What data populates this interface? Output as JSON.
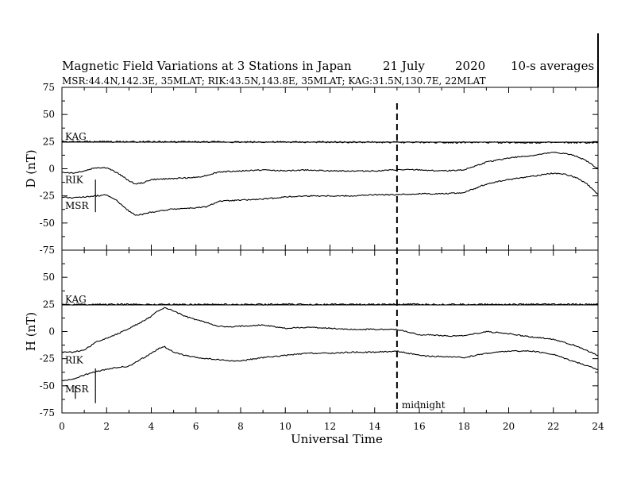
{
  "chart_data": {
    "type": "line",
    "title": "Magnetic Field Variations at 3 Stations in Japan",
    "date": "21 July",
    "year": "2020",
    "averaging": "10-s averages",
    "subtitle": "MSR:44.4N,142.3E, 35MLAT;  RIK:43.5N,143.8E, 35MLAT;  KAG:31.5N,130.7E, 22MLAT",
    "xlabel": "Universal Time",
    "xlim": [
      0,
      24
    ],
    "xticks": [
      "0",
      "2",
      "4",
      "6",
      "8",
      "10",
      "12",
      "14",
      "16",
      "18",
      "20",
      "22",
      "24"
    ],
    "annotation": {
      "label": "midnight",
      "x": 15
    },
    "panels": [
      {
        "ylabel": "D (nT)",
        "ylim": [
          -75,
          75
        ],
        "yticks": [
          "75",
          "50",
          "25",
          "0",
          "-25",
          "-50",
          "-75"
        ],
        "series": [
          {
            "name": "KAG",
            "baseline": 24.5,
            "x": [
              0,
              24
            ],
            "y": [
              25,
              24
            ]
          },
          {
            "name": "RIK",
            "x": [
              0,
              0.5,
              1,
              1.5,
              2,
              2.5,
              3,
              3.3,
              3.6,
              4,
              5,
              6,
              6.5,
              7,
              8,
              9,
              10,
              11,
              12,
              13,
              14,
              15,
              16,
              17,
              18,
              19,
              20,
              21,
              22,
              22.5,
              23,
              23.5,
              24
            ],
            "y": [
              -3,
              -4,
              -2,
              1,
              1,
              -4,
              -11,
              -14,
              -13,
              -10,
              -9,
              -8,
              -6,
              -3,
              -2,
              -1,
              -2,
              -1,
              -2,
              -2,
              -2,
              -1,
              -1,
              -2,
              -1,
              6,
              10,
              12,
              15,
              14,
              12,
              7,
              0
            ]
          },
          {
            "name": "MSR",
            "x": [
              0,
              0.5,
              1,
              1.5,
              2,
              2.5,
              3,
              3.3,
              3.6,
              4,
              5,
              6,
              6.5,
              7,
              8,
              9,
              10,
              11,
              12,
              13,
              14,
              15,
              16,
              17,
              18,
              19,
              20,
              21,
              22,
              22.5,
              23,
              23.5,
              24
            ],
            "y": [
              -26,
              -27,
              -26,
              -25,
              -24,
              -30,
              -39,
              -43,
              -42,
              -40,
              -37,
              -36,
              -35,
              -30,
              -29,
              -28,
              -26,
              -25,
              -25,
              -25,
              -24,
              -24,
              -23,
              -23,
              -22,
              -14,
              -10,
              -7,
              -4,
              -5,
              -8,
              -14,
              -24
            ]
          }
        ]
      },
      {
        "ylabel": "H (nT)",
        "ylim": [
          -75,
          75
        ],
        "yticks": [
          "75",
          "50",
          "25",
          "0",
          "-25",
          "-50",
          "-75"
        ],
        "series": [
          {
            "name": "KAG",
            "baseline": 24.5,
            "x": [
              0,
              24
            ],
            "y": [
              25,
              25
            ]
          },
          {
            "name": "RIK",
            "x": [
              0,
              0.5,
              1,
              1.5,
              2,
              2.5,
              3,
              3.5,
              4,
              4.3,
              4.6,
              5,
              5.5,
              6,
              6.5,
              7,
              7.5,
              8,
              9,
              10,
              11,
              12,
              13,
              14,
              15,
              16,
              16.5,
              17,
              18,
              19,
              20,
              21,
              22,
              23,
              24
            ],
            "y": [
              -19,
              -19,
              -17,
              -10,
              -6,
              -2,
              3,
              8,
              14,
              19,
              22,
              19,
              14,
              11,
              8,
              5,
              4,
              5,
              6,
              3,
              4,
              3,
              2,
              2,
              2,
              -3,
              -3,
              -4,
              -4,
              0,
              -2,
              -5,
              -7,
              -13,
              -22
            ]
          },
          {
            "name": "MSR",
            "x": [
              0,
              0.5,
              1,
              1.5,
              2,
              2.5,
              3,
              3.5,
              4,
              4.3,
              4.6,
              5,
              5.5,
              6,
              6.5,
              7,
              7.5,
              8,
              9,
              10,
              11,
              12,
              13,
              14,
              15,
              16,
              16.5,
              17,
              18,
              19,
              20,
              21,
              22,
              23,
              24
            ],
            "y": [
              -45,
              -44,
              -40,
              -37,
              -35,
              -33,
              -32,
              -26,
              -20,
              -16,
              -14,
              -19,
              -22,
              -24,
              -25,
              -26,
              -27,
              -27,
              -24,
              -22,
              -20,
              -20,
              -19,
              -19,
              -18,
              -22,
              -23,
              -23,
              -24,
              -20,
              -18,
              -18,
              -21,
              -28,
              -35
            ]
          }
        ]
      }
    ]
  }
}
